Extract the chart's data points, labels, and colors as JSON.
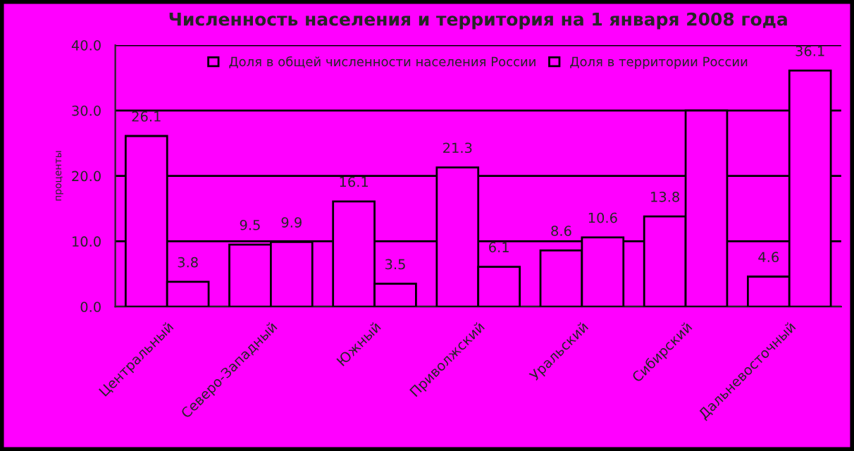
{
  "chart_data": {
    "type": "bar",
    "title": "Численность населения и территория на 1 января 2008 года",
    "ylabel": "проценты",
    "categories": [
      "Центральный",
      "Северо-Западный",
      "Южный",
      "Приволжский",
      "Уральский",
      "Сибирский",
      "Дальневосточный"
    ],
    "series": [
      {
        "name": "Доля в общей численности населения России",
        "color": "#ff00ff",
        "values": [
          26.1,
          9.5,
          16.1,
          21.3,
          8.6,
          13.8,
          4.6
        ],
        "value_labels": [
          "26.1",
          "9.5",
          "16.1",
          "21.3",
          "8.6",
          "13.8",
          "4.6"
        ]
      },
      {
        "name": "Доля в территории России",
        "color": "#ff00ff",
        "values": [
          3.8,
          9.9,
          3.5,
          6.1,
          10.6,
          30.0,
          36.1
        ],
        "value_labels": [
          "3.8",
          "9.9",
          "3.5",
          "6.1",
          "10.6",
          null,
          "36.1"
        ]
      }
    ],
    "ylim": [
      0,
      40
    ],
    "yticks": [
      {
        "value": 0,
        "label": "0.0"
      },
      {
        "value": 10,
        "label": "10.0"
      },
      {
        "value": 20,
        "label": "20.0"
      },
      {
        "value": 30,
        "label": "30.0"
      },
      {
        "value": 40,
        "label": "40.0"
      }
    ],
    "grid": "y",
    "legend": "top"
  }
}
